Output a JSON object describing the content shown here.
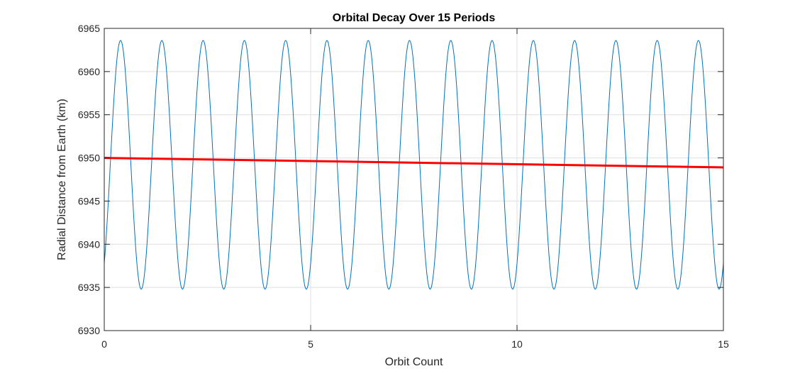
{
  "chart_data": {
    "type": "line",
    "title": "Orbital Decay Over 15 Periods",
    "xlabel": "Orbit Count",
    "ylabel": "Radial Distance from Earth (km)",
    "xlim": [
      0,
      15
    ],
    "ylim": [
      6930,
      6965
    ],
    "xticks": [
      0,
      5,
      10,
      15
    ],
    "yticks": [
      6930,
      6935,
      6940,
      6945,
      6950,
      6955,
      6960,
      6965
    ],
    "xtick_labels": [
      "0",
      "5",
      "10",
      "15"
    ],
    "ytick_labels": [
      "6930",
      "6935",
      "6940",
      "6945",
      "6950",
      "6955",
      "6960",
      "6965"
    ],
    "grid": true,
    "series": [
      {
        "color": "#0072bd",
        "description": "oscillating radial distance, one period per orbit",
        "mean": 6949.2,
        "amplitude": 14.4,
        "cycles": 15,
        "phase_start_value": 6937.8,
        "min": 6934.8,
        "max": 6963.6
      },
      {
        "color": "#ff0000",
        "description": "mean distance trend",
        "x": [
          0,
          15
        ],
        "y": [
          6950.0,
          6948.9
        ]
      }
    ]
  }
}
